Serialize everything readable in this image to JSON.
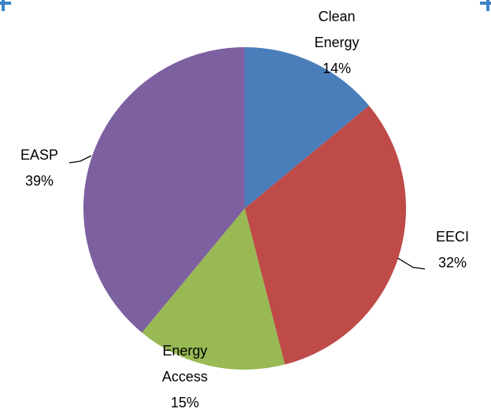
{
  "chart_data": {
    "type": "pie",
    "categories": [
      "Clean Energy",
      "EECI",
      "Energy Access",
      "EASP"
    ],
    "values": [
      14,
      32,
      15,
      39
    ],
    "value_labels": [
      "14%",
      "32%",
      "15%",
      "39%"
    ],
    "colors": [
      "#4a7ebb",
      "#be4b48",
      "#98b954",
      "#7d60a0"
    ]
  }
}
